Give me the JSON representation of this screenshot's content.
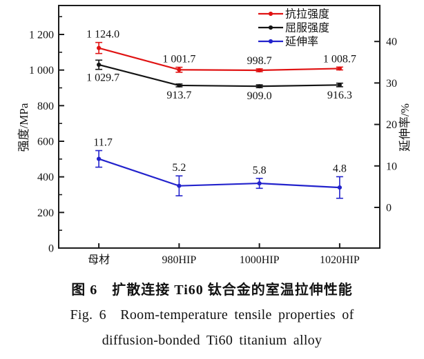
{
  "figure": {
    "caption_zh": "图 6　扩散连接 Ti60 钛合金的室温拉伸性能",
    "caption_en_line1": "Fig. 6　Room-temperature tensile properties of",
    "caption_en_line2": "diffusion-bonded Ti60 titanium alloy"
  },
  "chart_data": {
    "type": "line",
    "title": "",
    "categories": [
      "母材",
      "980HIP",
      "1000HIP",
      "1020HIP"
    ],
    "series": [
      {
        "name": "抗拉强度",
        "axis": "left",
        "color": "#e01212",
        "values": [
          1124.0,
          1001.7,
          998.7,
          1008.7
        ],
        "errors": [
          31,
          14,
          8,
          8
        ],
        "point_labels": [
          "1 124.0",
          "1 001.7",
          "998.7",
          "1 008.7"
        ],
        "label_side": [
          "above",
          "above",
          "above",
          "above"
        ]
      },
      {
        "name": "屈服强度",
        "axis": "left",
        "color": "#141414",
        "values": [
          1029.7,
          913.7,
          909.0,
          916.3
        ],
        "errors": [
          26,
          8,
          8,
          10
        ],
        "point_labels": [
          "1 029.7",
          "913.7",
          "909.0",
          "916.3"
        ],
        "label_side": [
          "below",
          "below",
          "below",
          "below"
        ]
      },
      {
        "name": "延伸率",
        "axis": "right",
        "color": "#2222cc",
        "values": [
          11.7,
          5.2,
          5.8,
          4.8
        ],
        "errors": [
          2.0,
          2.4,
          1.2,
          2.6
        ],
        "point_labels": [
          "11.7",
          "5.2",
          "5.8",
          "4.8"
        ],
        "label_side": [
          "above",
          "above",
          "above",
          "above"
        ]
      }
    ],
    "left_axis": {
      "label": "强度/MPa",
      "min": 0,
      "max": 1200,
      "major_step": 200,
      "minor_step": 100,
      "tick_labels": [
        "0",
        "200",
        "400",
        "600",
        "800",
        "1 000",
        "1 200"
      ]
    },
    "right_axis": {
      "label": "延伸率/%",
      "min": 0,
      "max": 40,
      "major_step": 10,
      "tick_labels": [
        "0",
        "10",
        "20",
        "30",
        "40"
      ]
    },
    "grid": false,
    "legend_position": "top-right-inside",
    "frame_color": "#1a1a1a",
    "label_color": "#111111"
  }
}
